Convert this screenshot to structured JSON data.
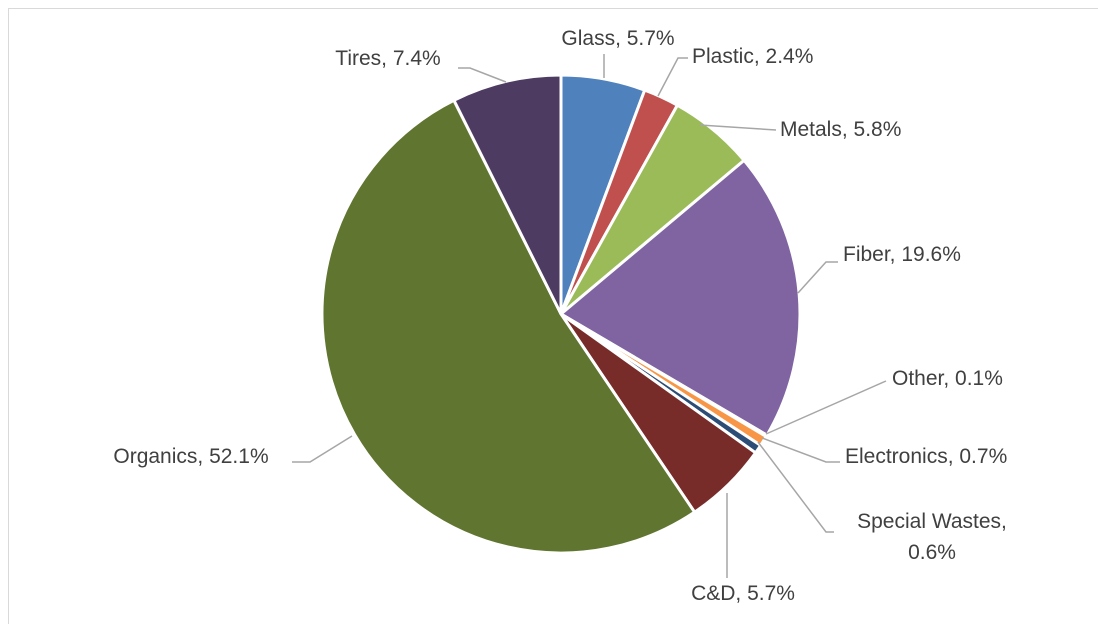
{
  "chart_data": {
    "type": "pie",
    "title": "",
    "slices": [
      {
        "name": "Glass",
        "value": 5.7,
        "label_lines": [
          "Glass, 5.7%"
        ],
        "color": "#4f81bd"
      },
      {
        "name": "Plastic",
        "value": 2.4,
        "label_lines": [
          "Plastic, 2.4%"
        ],
        "color": "#c0504d"
      },
      {
        "name": "Metals",
        "value": 5.8,
        "label_lines": [
          "Metals, 5.8%"
        ],
        "color": "#9bbb59"
      },
      {
        "name": "Fiber",
        "value": 19.6,
        "label_lines": [
          "Fiber, 19.6%"
        ],
        "color": "#8064a2"
      },
      {
        "name": "Other",
        "value": 0.1,
        "label_lines": [
          "Other, 0.1%"
        ],
        "color": "#4bacc6"
      },
      {
        "name": "Electronics",
        "value": 0.7,
        "label_lines": [
          "Electronics, 0.7%"
        ],
        "color": "#f79646"
      },
      {
        "name": "Special Wastes",
        "value": 0.6,
        "label_lines": [
          "Special Wastes,",
          "0.6%"
        ],
        "color": "#2c4d75"
      },
      {
        "name": "C&D",
        "value": 5.7,
        "label_lines": [
          "C&D, 5.7%"
        ],
        "color": "#772c2a"
      },
      {
        "name": "Organics",
        "value": 52.1,
        "label_lines": [
          "Organics, 52.1%"
        ],
        "color": "#5f7530"
      },
      {
        "name": "Tires",
        "value": 7.4,
        "label_lines": [
          "Tires, 7.4%"
        ],
        "color": "#4d3b62"
      }
    ],
    "start_angle": "12 o'clock",
    "direction": "clockwise",
    "legend": "none",
    "data_labels": "outside with leader lines"
  }
}
